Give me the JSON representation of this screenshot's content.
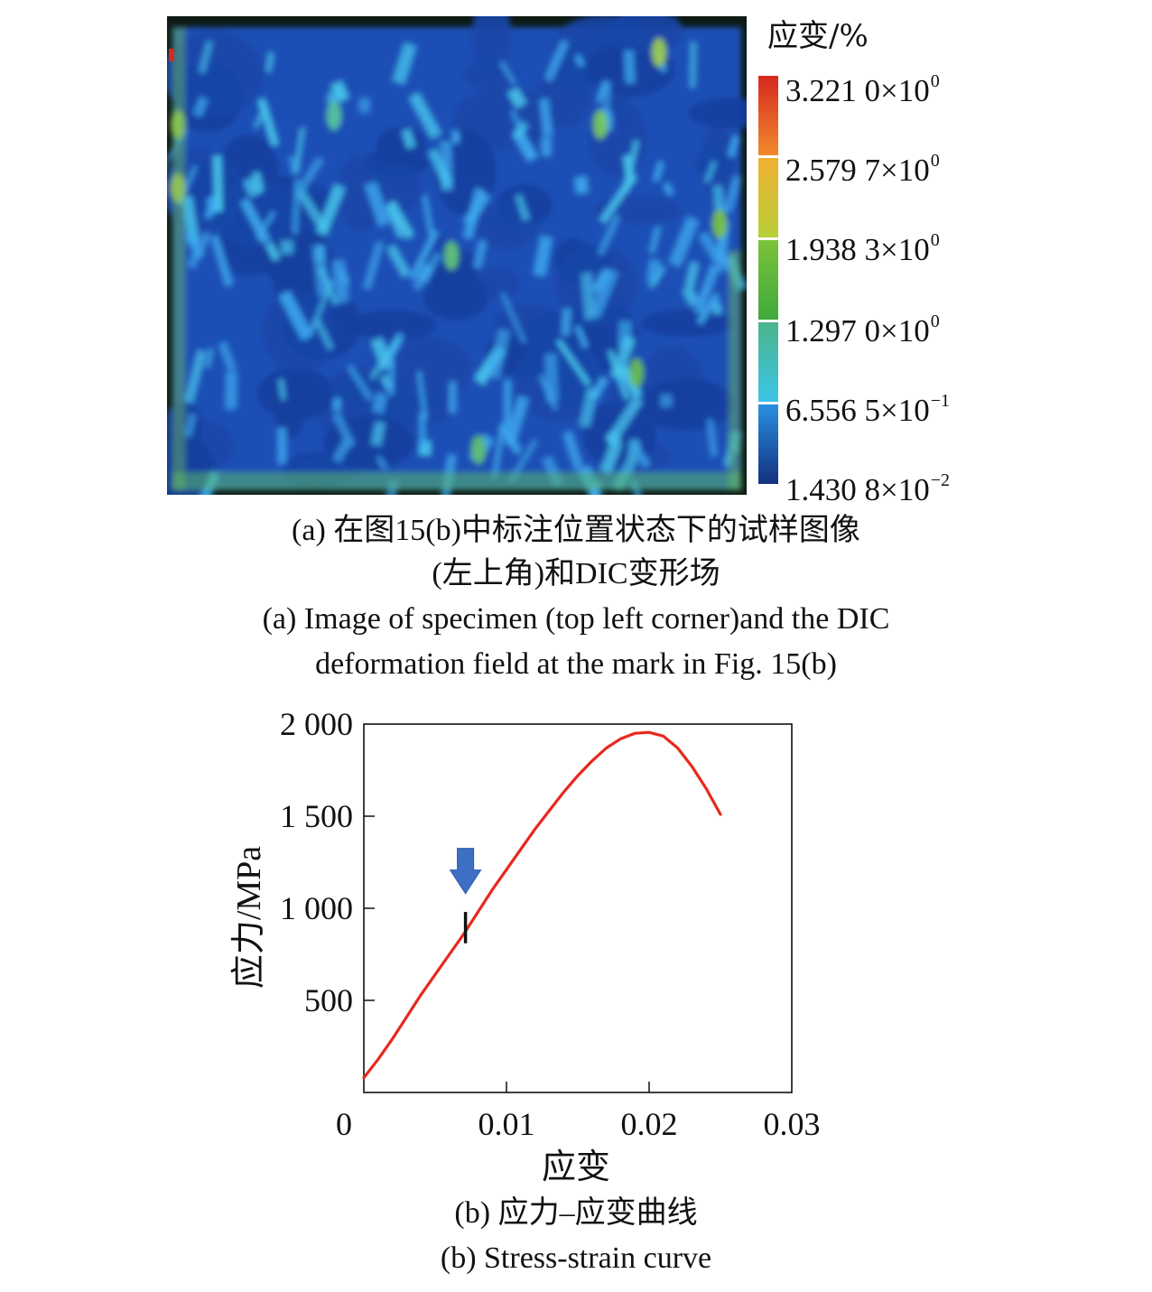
{
  "panel_a": {
    "colorbar": {
      "title": "应变/%",
      "labels": [
        {
          "mantissa": "3.221 0×10",
          "exp": "0"
        },
        {
          "mantissa": "2.579 7×10",
          "exp": "0"
        },
        {
          "mantissa": "1.938 3×10",
          "exp": "0"
        },
        {
          "mantissa": "1.297 0×10",
          "exp": "0"
        },
        {
          "mantissa": "6.556 5×10",
          "exp": "−1"
        },
        {
          "mantissa": "1.430 8×10",
          "exp": "−2"
        }
      ],
      "colors": [
        "#d7281e",
        "#f0a030",
        "#dcd437",
        "#62b43c",
        "#49b88e",
        "#3bc5e8",
        "#1f4fb6",
        "#14307f"
      ]
    },
    "caption_zh_line1": "(a) 在图15(b)中标注位置状态下的试样图像",
    "caption_zh_line2": "(左上角)和DIC变形场",
    "caption_en_line1": "(a) Image of specimen (top left corner)and the DIC",
    "caption_en_line2": "deformation field at the mark in Fig. 15(b)"
  },
  "chart_data": {
    "type": "line",
    "title": "",
    "xlabel": "应变",
    "ylabel": "应力/MPa",
    "xlim": [
      0,
      0.03
    ],
    "ylim": [
      0,
      2000
    ],
    "xticks": [
      0,
      0.01,
      0.02,
      0.03
    ],
    "xtick_labels": [
      "0",
      "0.01",
      "0.02",
      "0.03"
    ],
    "yticks": [
      500,
      1000,
      1500,
      2000
    ],
    "ytick_labels": [
      "500",
      "1 000",
      "1 500",
      "2 000"
    ],
    "grid": false,
    "series": [
      {
        "color": "#e8281e",
        "x": [
          0,
          0.001,
          0.002,
          0.003,
          0.004,
          0.005,
          0.006,
          0.007,
          0.008,
          0.009,
          0.01,
          0.011,
          0.012,
          0.013,
          0.014,
          0.015,
          0.016,
          0.017,
          0.018,
          0.019,
          0.02,
          0.021,
          0.022,
          0.023,
          0.024,
          0.025
        ],
        "y": [
          80,
          180,
          290,
          410,
          530,
          640,
          750,
          860,
          980,
          1100,
          1210,
          1320,
          1430,
          1530,
          1630,
          1720,
          1800,
          1870,
          1920,
          1950,
          1955,
          1935,
          1870,
          1770,
          1650,
          1510
        ]
      }
    ],
    "marker": {
      "x": 0.007,
      "y_range": [
        810,
        980
      ]
    },
    "arrow": {
      "x": 0.007,
      "color": "#3d6fc4"
    }
  },
  "panel_b": {
    "caption_zh": "(b) 应力–应变曲线",
    "caption_en": "(b) Stress-strain curve"
  }
}
